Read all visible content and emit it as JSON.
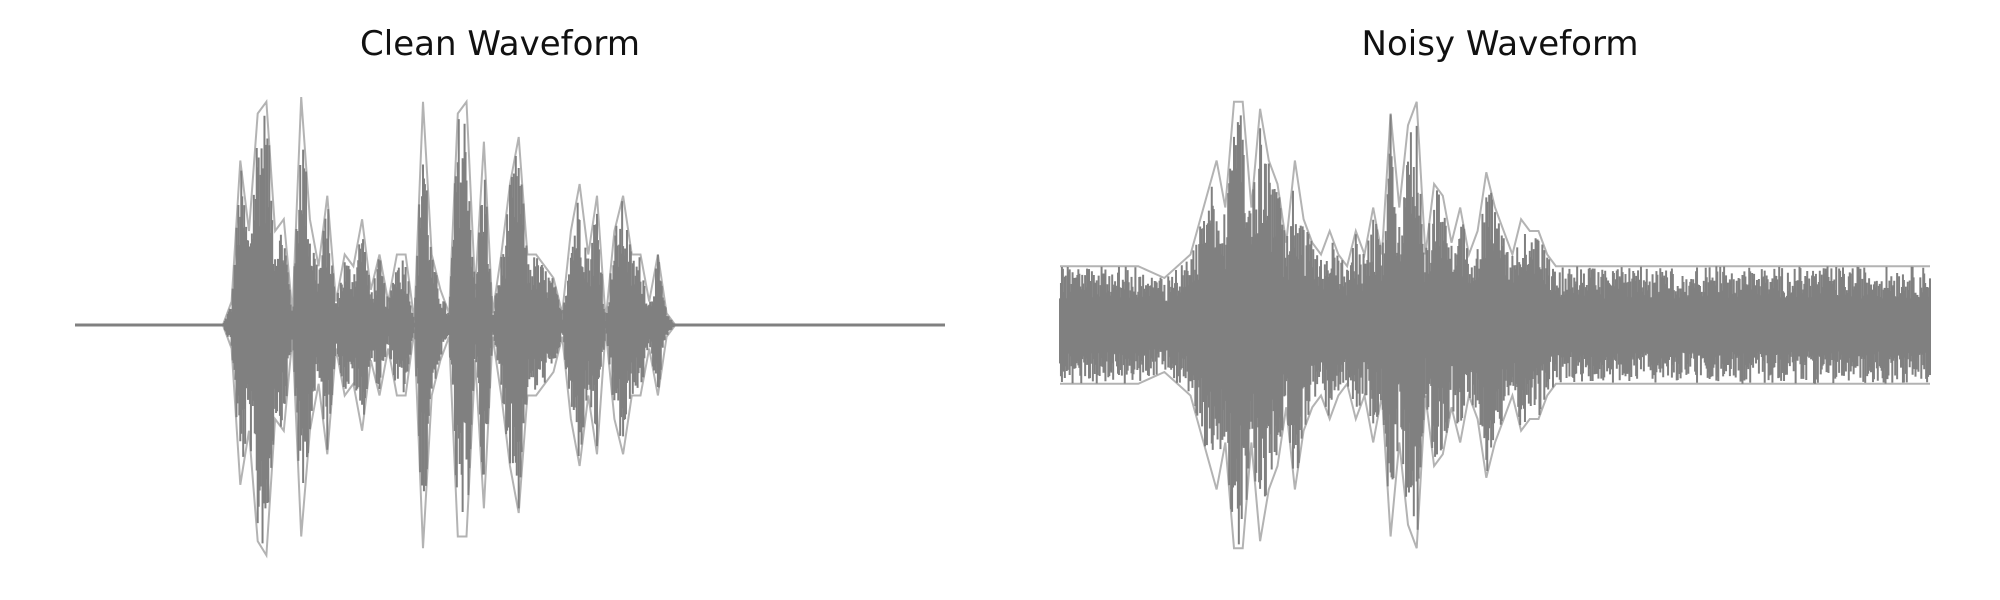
{
  "waveforms": {
    "color": "#808080",
    "background": "#ffffff",
    "axes": "off"
  },
  "chart_data": [
    {
      "type": "line",
      "title": "Clean Waveform",
      "xlabel": "",
      "ylabel": "",
      "grid": false,
      "axes_visible": false,
      "ylim": [
        -1.0,
        1.0
      ],
      "envelope": {
        "x": [
          0.0,
          0.17,
          0.18,
          0.19,
          0.2,
          0.21,
          0.22,
          0.23,
          0.24,
          0.25,
          0.26,
          0.27,
          0.28,
          0.29,
          0.3,
          0.31,
          0.32,
          0.33,
          0.34,
          0.35,
          0.36,
          0.37,
          0.38,
          0.39,
          0.4,
          0.41,
          0.42,
          0.43,
          0.44,
          0.45,
          0.46,
          0.47,
          0.48,
          0.49,
          0.5,
          0.51,
          0.52,
          0.53,
          0.54,
          0.55,
          0.56,
          0.57,
          0.58,
          0.59,
          0.6,
          0.61,
          0.62,
          0.63,
          0.64,
          0.65,
          0.66,
          0.67,
          0.68,
          0.69,
          0.7,
          0.71,
          0.72,
          0.73,
          0.74,
          0.75,
          0.76,
          0.77,
          0.78,
          0.79,
          0.8,
          0.81,
          0.82,
          0.83,
          0.84,
          0.85,
          0.86,
          0.87,
          0.88,
          0.89,
          0.9,
          1.0
        ],
        "upper": [
          0.0,
          0.0,
          0.1,
          0.7,
          0.4,
          0.9,
          0.95,
          0.4,
          0.45,
          0.05,
          0.97,
          0.45,
          0.25,
          0.55,
          0.1,
          0.3,
          0.25,
          0.45,
          0.15,
          0.3,
          0.1,
          0.3,
          0.3,
          0.02,
          0.95,
          0.3,
          0.15,
          0.05,
          0.9,
          0.95,
          0.15,
          0.78,
          0.05,
          0.3,
          0.6,
          0.8,
          0.3,
          0.3,
          0.25,
          0.2,
          0.05,
          0.4,
          0.6,
          0.3,
          0.55,
          0.02,
          0.4,
          0.55,
          0.3,
          0.3,
          0.1,
          0.3,
          0.05,
          0.0,
          0.0,
          0.0,
          0.0,
          0.0,
          0.0,
          0.0,
          0.0,
          0.0,
          0.0,
          0.0,
          0.0,
          0.0,
          0.0,
          0.0,
          0.0,
          0.0,
          0.0,
          0.0,
          0.0,
          0.0,
          0.0,
          0.0
        ],
        "lower": [
          0.0,
          0.0,
          -0.1,
          -0.68,
          -0.45,
          -0.92,
          -0.98,
          -0.4,
          -0.45,
          -0.05,
          -0.9,
          -0.45,
          -0.25,
          -0.55,
          -0.1,
          -0.3,
          -0.25,
          -0.45,
          -0.15,
          -0.3,
          -0.1,
          -0.3,
          -0.3,
          -0.02,
          -0.95,
          -0.3,
          -0.15,
          -0.05,
          -0.9,
          -0.9,
          -0.15,
          -0.78,
          -0.05,
          -0.3,
          -0.6,
          -0.8,
          -0.3,
          -0.3,
          -0.25,
          -0.2,
          -0.05,
          -0.4,
          -0.6,
          -0.3,
          -0.55,
          -0.02,
          -0.4,
          -0.55,
          -0.3,
          -0.3,
          -0.1,
          -0.3,
          -0.05,
          0.0,
          0.0,
          0.0,
          0.0,
          0.0,
          0.0,
          0.0,
          0.0,
          0.0,
          0.0,
          0.0,
          0.0,
          0.0,
          0.0,
          0.0,
          0.0,
          0.0,
          0.0,
          0.0,
          0.0,
          0.0,
          0.0,
          0.0
        ]
      }
    },
    {
      "type": "line",
      "title": "Noisy Waveform",
      "xlabel": "",
      "ylabel": "",
      "grid": false,
      "axes_visible": false,
      "ylim": [
        -1.0,
        1.0
      ],
      "envelope": {
        "x": [
          0.0,
          0.03,
          0.06,
          0.09,
          0.12,
          0.15,
          0.18,
          0.19,
          0.2,
          0.21,
          0.22,
          0.23,
          0.24,
          0.25,
          0.26,
          0.27,
          0.28,
          0.29,
          0.3,
          0.31,
          0.32,
          0.33,
          0.34,
          0.35,
          0.36,
          0.37,
          0.38,
          0.39,
          0.4,
          0.41,
          0.42,
          0.43,
          0.44,
          0.45,
          0.46,
          0.47,
          0.48,
          0.49,
          0.5,
          0.51,
          0.52,
          0.53,
          0.54,
          0.55,
          0.56,
          0.57,
          0.58,
          0.59,
          0.6,
          0.61,
          0.62,
          0.63,
          0.64,
          0.65,
          0.66,
          0.67,
          0.68,
          0.69,
          0.7,
          0.71,
          0.72,
          0.73,
          0.74,
          0.75,
          0.78,
          0.81,
          0.84,
          0.87,
          0.9,
          0.93,
          0.96,
          1.0
        ],
        "upper": [
          0.25,
          0.25,
          0.25,
          0.25,
          0.2,
          0.3,
          0.7,
          0.5,
          0.95,
          0.95,
          0.5,
          0.92,
          0.7,
          0.6,
          0.35,
          0.7,
          0.45,
          0.35,
          0.3,
          0.4,
          0.3,
          0.25,
          0.4,
          0.3,
          0.5,
          0.3,
          0.9,
          0.5,
          0.85,
          0.95,
          0.3,
          0.6,
          0.55,
          0.35,
          0.5,
          0.3,
          0.4,
          0.65,
          0.5,
          0.4,
          0.3,
          0.45,
          0.4,
          0.4,
          0.3,
          0.25,
          0.25,
          0.25,
          0.25,
          0.25,
          0.25,
          0.25,
          0.25,
          0.25,
          0.25,
          0.25,
          0.25,
          0.25,
          0.25,
          0.25,
          0.25,
          0.25,
          0.25,
          0.25,
          0.25,
          0.25,
          0.25,
          0.25,
          0.25,
          0.25,
          0.25,
          0.25
        ],
        "lower": [
          -0.25,
          -0.25,
          -0.25,
          -0.25,
          -0.2,
          -0.3,
          -0.7,
          -0.5,
          -0.95,
          -0.95,
          -0.5,
          -0.92,
          -0.7,
          -0.6,
          -0.35,
          -0.7,
          -0.45,
          -0.35,
          -0.3,
          -0.4,
          -0.3,
          -0.25,
          -0.4,
          -0.3,
          -0.5,
          -0.3,
          -0.9,
          -0.5,
          -0.85,
          -0.95,
          -0.3,
          -0.6,
          -0.55,
          -0.35,
          -0.5,
          -0.3,
          -0.4,
          -0.65,
          -0.5,
          -0.4,
          -0.3,
          -0.45,
          -0.4,
          -0.4,
          -0.3,
          -0.25,
          -0.25,
          -0.25,
          -0.25,
          -0.25,
          -0.25,
          -0.25,
          -0.25,
          -0.25,
          -0.25,
          -0.25,
          -0.25,
          -0.25,
          -0.25,
          -0.25,
          -0.25,
          -0.25,
          -0.25,
          -0.25,
          -0.25,
          -0.25,
          -0.25,
          -0.25,
          -0.25,
          -0.25,
          -0.25,
          -0.25
        ]
      }
    }
  ]
}
